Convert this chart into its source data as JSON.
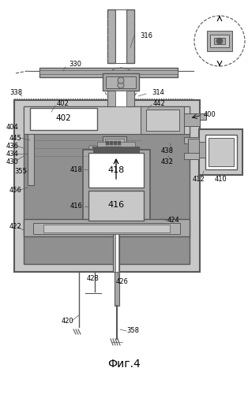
{
  "title": "Фиг.4",
  "bg_color": "#ffffff",
  "fig_width": 3.14,
  "fig_height": 5.0,
  "dpi": 100,
  "gray_light": "#c8c8c8",
  "gray_med": "#a8a8a8",
  "gray_dark": "#585858",
  "gray_fill": "#b0b0b0",
  "gray_stipple": "#909090",
  "white": "#ffffff",
  "black": "#000000"
}
